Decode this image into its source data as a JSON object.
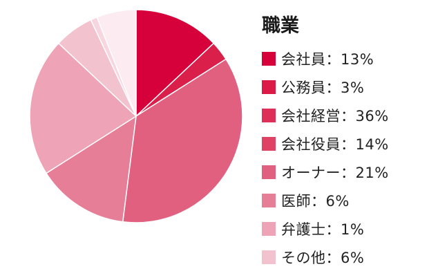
{
  "chart_data": {
    "type": "pie",
    "title": "職業",
    "legend_position": "right",
    "start_angle": "top",
    "direction": "clockwise",
    "slices": [
      {
        "label": "会社員",
        "value": 13,
        "display": "会社員：13%",
        "color": "#d6003a"
      },
      {
        "label": "公務員",
        "value": 3,
        "display": "公務員：3%",
        "color": "#d91f4a"
      },
      {
        "label": "会社経営",
        "value": 36,
        "display": "会社経営：36%",
        "color": "#e2607f"
      },
      {
        "label": "会社役員",
        "value": 14,
        "display": "会社役員：14%",
        "color": "#e67e98"
      },
      {
        "label": "オーナー",
        "value": 21,
        "display": "オーナー：21%",
        "color": "#eea3b6"
      },
      {
        "label": "医師",
        "value": 6,
        "display": "医師：6%",
        "color": "#f3c2cf"
      },
      {
        "label": "弁護士",
        "value": 1,
        "display": "弁護士：1%",
        "color": "#f7d6df"
      },
      {
        "label": "その他",
        "value": 6,
        "display": "その他：6%",
        "color": "#fcebf0"
      }
    ],
    "legend_swatch_colors": [
      "#d6003a",
      "#db1a48",
      "#de2f58",
      "#e04266",
      "#e2607f",
      "#e67e98",
      "#eea3b6",
      "#f3c2cf"
    ]
  }
}
